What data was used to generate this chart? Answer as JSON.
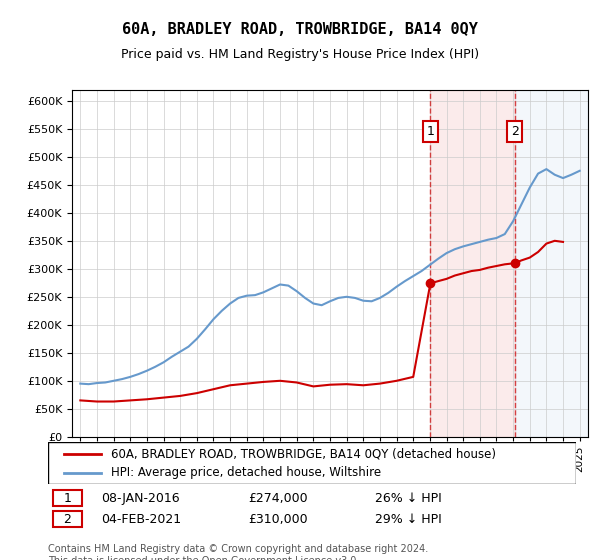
{
  "title": "60A, BRADLEY ROAD, TROWBRIDGE, BA14 0QY",
  "subtitle": "Price paid vs. HM Land Registry's House Price Index (HPI)",
  "legend_line1": "60A, BRADLEY ROAD, TROWBRIDGE, BA14 0QY (detached house)",
  "legend_line2": "HPI: Average price, detached house, Wiltshire",
  "footer": "Contains HM Land Registry data © Crown copyright and database right 2024.\nThis data is licensed under the Open Government Licence v3.0.",
  "point1_label": "1",
  "point1_date": "08-JAN-2016",
  "point1_price": "£274,000",
  "point1_hpi": "26% ↓ HPI",
  "point1_year": 2016.03,
  "point1_value": 274000,
  "point2_label": "2",
  "point2_date": "04-FEB-2021",
  "point2_price": "£310,000",
  "point2_hpi": "29% ↓ HPI",
  "point2_year": 2021.09,
  "point2_value": 310000,
  "red_color": "#cc0000",
  "blue_color": "#6699cc",
  "background_fill": "#f0f4fa",
  "grid_color": "#cccccc",
  "hpi_years": [
    1995,
    1995.5,
    1996,
    1996.5,
    1997,
    1997.5,
    1998,
    1998.5,
    1999,
    1999.5,
    2000,
    2000.5,
    2001,
    2001.5,
    2002,
    2002.5,
    2003,
    2003.5,
    2004,
    2004.5,
    2005,
    2005.5,
    2006,
    2006.5,
    2007,
    2007.5,
    2008,
    2008.5,
    2009,
    2009.5,
    2010,
    2010.5,
    2011,
    2011.5,
    2012,
    2012.5,
    2013,
    2013.5,
    2014,
    2014.5,
    2015,
    2015.5,
    2016,
    2016.5,
    2017,
    2017.5,
    2018,
    2018.5,
    2019,
    2019.5,
    2020,
    2020.5,
    2021,
    2021.5,
    2022,
    2022.5,
    2023,
    2023.5,
    2024,
    2024.5,
    2025
  ],
  "hpi_values": [
    95000,
    94000,
    96000,
    97000,
    100000,
    103000,
    107000,
    112000,
    118000,
    125000,
    133000,
    143000,
    152000,
    161000,
    175000,
    192000,
    210000,
    225000,
    238000,
    248000,
    252000,
    253000,
    258000,
    265000,
    272000,
    270000,
    260000,
    248000,
    238000,
    235000,
    242000,
    248000,
    250000,
    248000,
    243000,
    242000,
    248000,
    257000,
    268000,
    278000,
    287000,
    296000,
    307000,
    318000,
    328000,
    335000,
    340000,
    344000,
    348000,
    352000,
    355000,
    362000,
    385000,
    415000,
    445000,
    470000,
    478000,
    468000,
    462000,
    468000,
    475000
  ],
  "red_years": [
    1995,
    1996,
    1997,
    1998,
    1999,
    2000,
    2001,
    2002,
    2003,
    2004,
    2005,
    2006,
    2007,
    2008,
    2009,
    2010,
    2011,
    2012,
    2013,
    2014,
    2015,
    2016.03,
    2016.5,
    2017,
    2017.5,
    2018,
    2018.5,
    2019,
    2019.5,
    2020,
    2020.5,
    2021.09,
    2021.5,
    2022,
    2022.5,
    2023,
    2023.5,
    2024
  ],
  "red_values": [
    65000,
    63000,
    63000,
    65000,
    67000,
    70000,
    73000,
    78000,
    85000,
    92000,
    95000,
    98000,
    100000,
    97000,
    90000,
    93000,
    94000,
    92000,
    95000,
    100000,
    107000,
    274000,
    278000,
    282000,
    288000,
    292000,
    296000,
    298000,
    302000,
    305000,
    308000,
    310000,
    315000,
    320000,
    330000,
    345000,
    350000,
    348000
  ],
  "ylim": [
    0,
    620000
  ],
  "xlim": [
    1994.5,
    2025.5
  ]
}
